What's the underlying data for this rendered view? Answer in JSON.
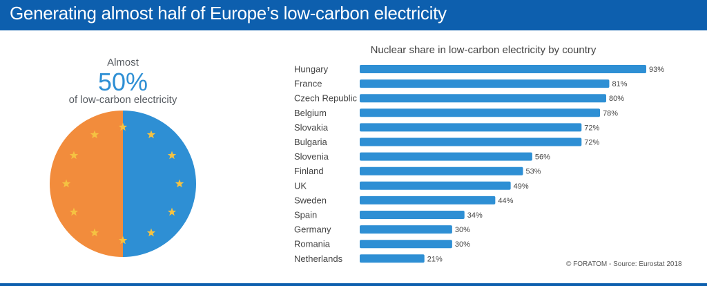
{
  "header": {
    "title": "Generating almost half of Europe’s low-carbon electricity"
  },
  "kpi": {
    "top_label": "Almost",
    "value": "50%",
    "bottom_label": "of low-carbon electricity"
  },
  "colors": {
    "header_bg": "#0d5fae",
    "bar": "#2e8fd4",
    "pie_nuclear": "#2e8fd4",
    "pie_other": "#f28c3c",
    "star": "#f5c242"
  },
  "source_text": "© FORATOM - Source: Eurostat 2018",
  "chart_data": [
    {
      "type": "pie",
      "values": [
        50,
        50
      ],
      "colors": [
        "#2e8fd4",
        "#f28c3c"
      ],
      "decoration": "ring-of-12-stars"
    },
    {
      "type": "bar",
      "orientation": "horizontal",
      "title": "Nuclear share in low-carbon electricity by country",
      "xlabel": "",
      "ylabel": "",
      "xlim": [
        0,
        93
      ],
      "categories": [
        "Hungary",
        "France",
        "Czech Republic",
        "Belgium",
        "Slovakia",
        "Bulgaria",
        "Slovenia",
        "Finland",
        "UK",
        "Sweden",
        "Spain",
        "Germany",
        "Romania",
        "Netherlands"
      ],
      "values": [
        93,
        81,
        80,
        78,
        72,
        72,
        56,
        53,
        49,
        44,
        34,
        30,
        30,
        21
      ],
      "value_labels": [
        "93%",
        "81%",
        "80%",
        "78%",
        "72%",
        "72%",
        "56%",
        "53%",
        "49%",
        "44%",
        "34%",
        "30%",
        "30%",
        "21%"
      ],
      "grid": false,
      "legend": "none"
    }
  ]
}
